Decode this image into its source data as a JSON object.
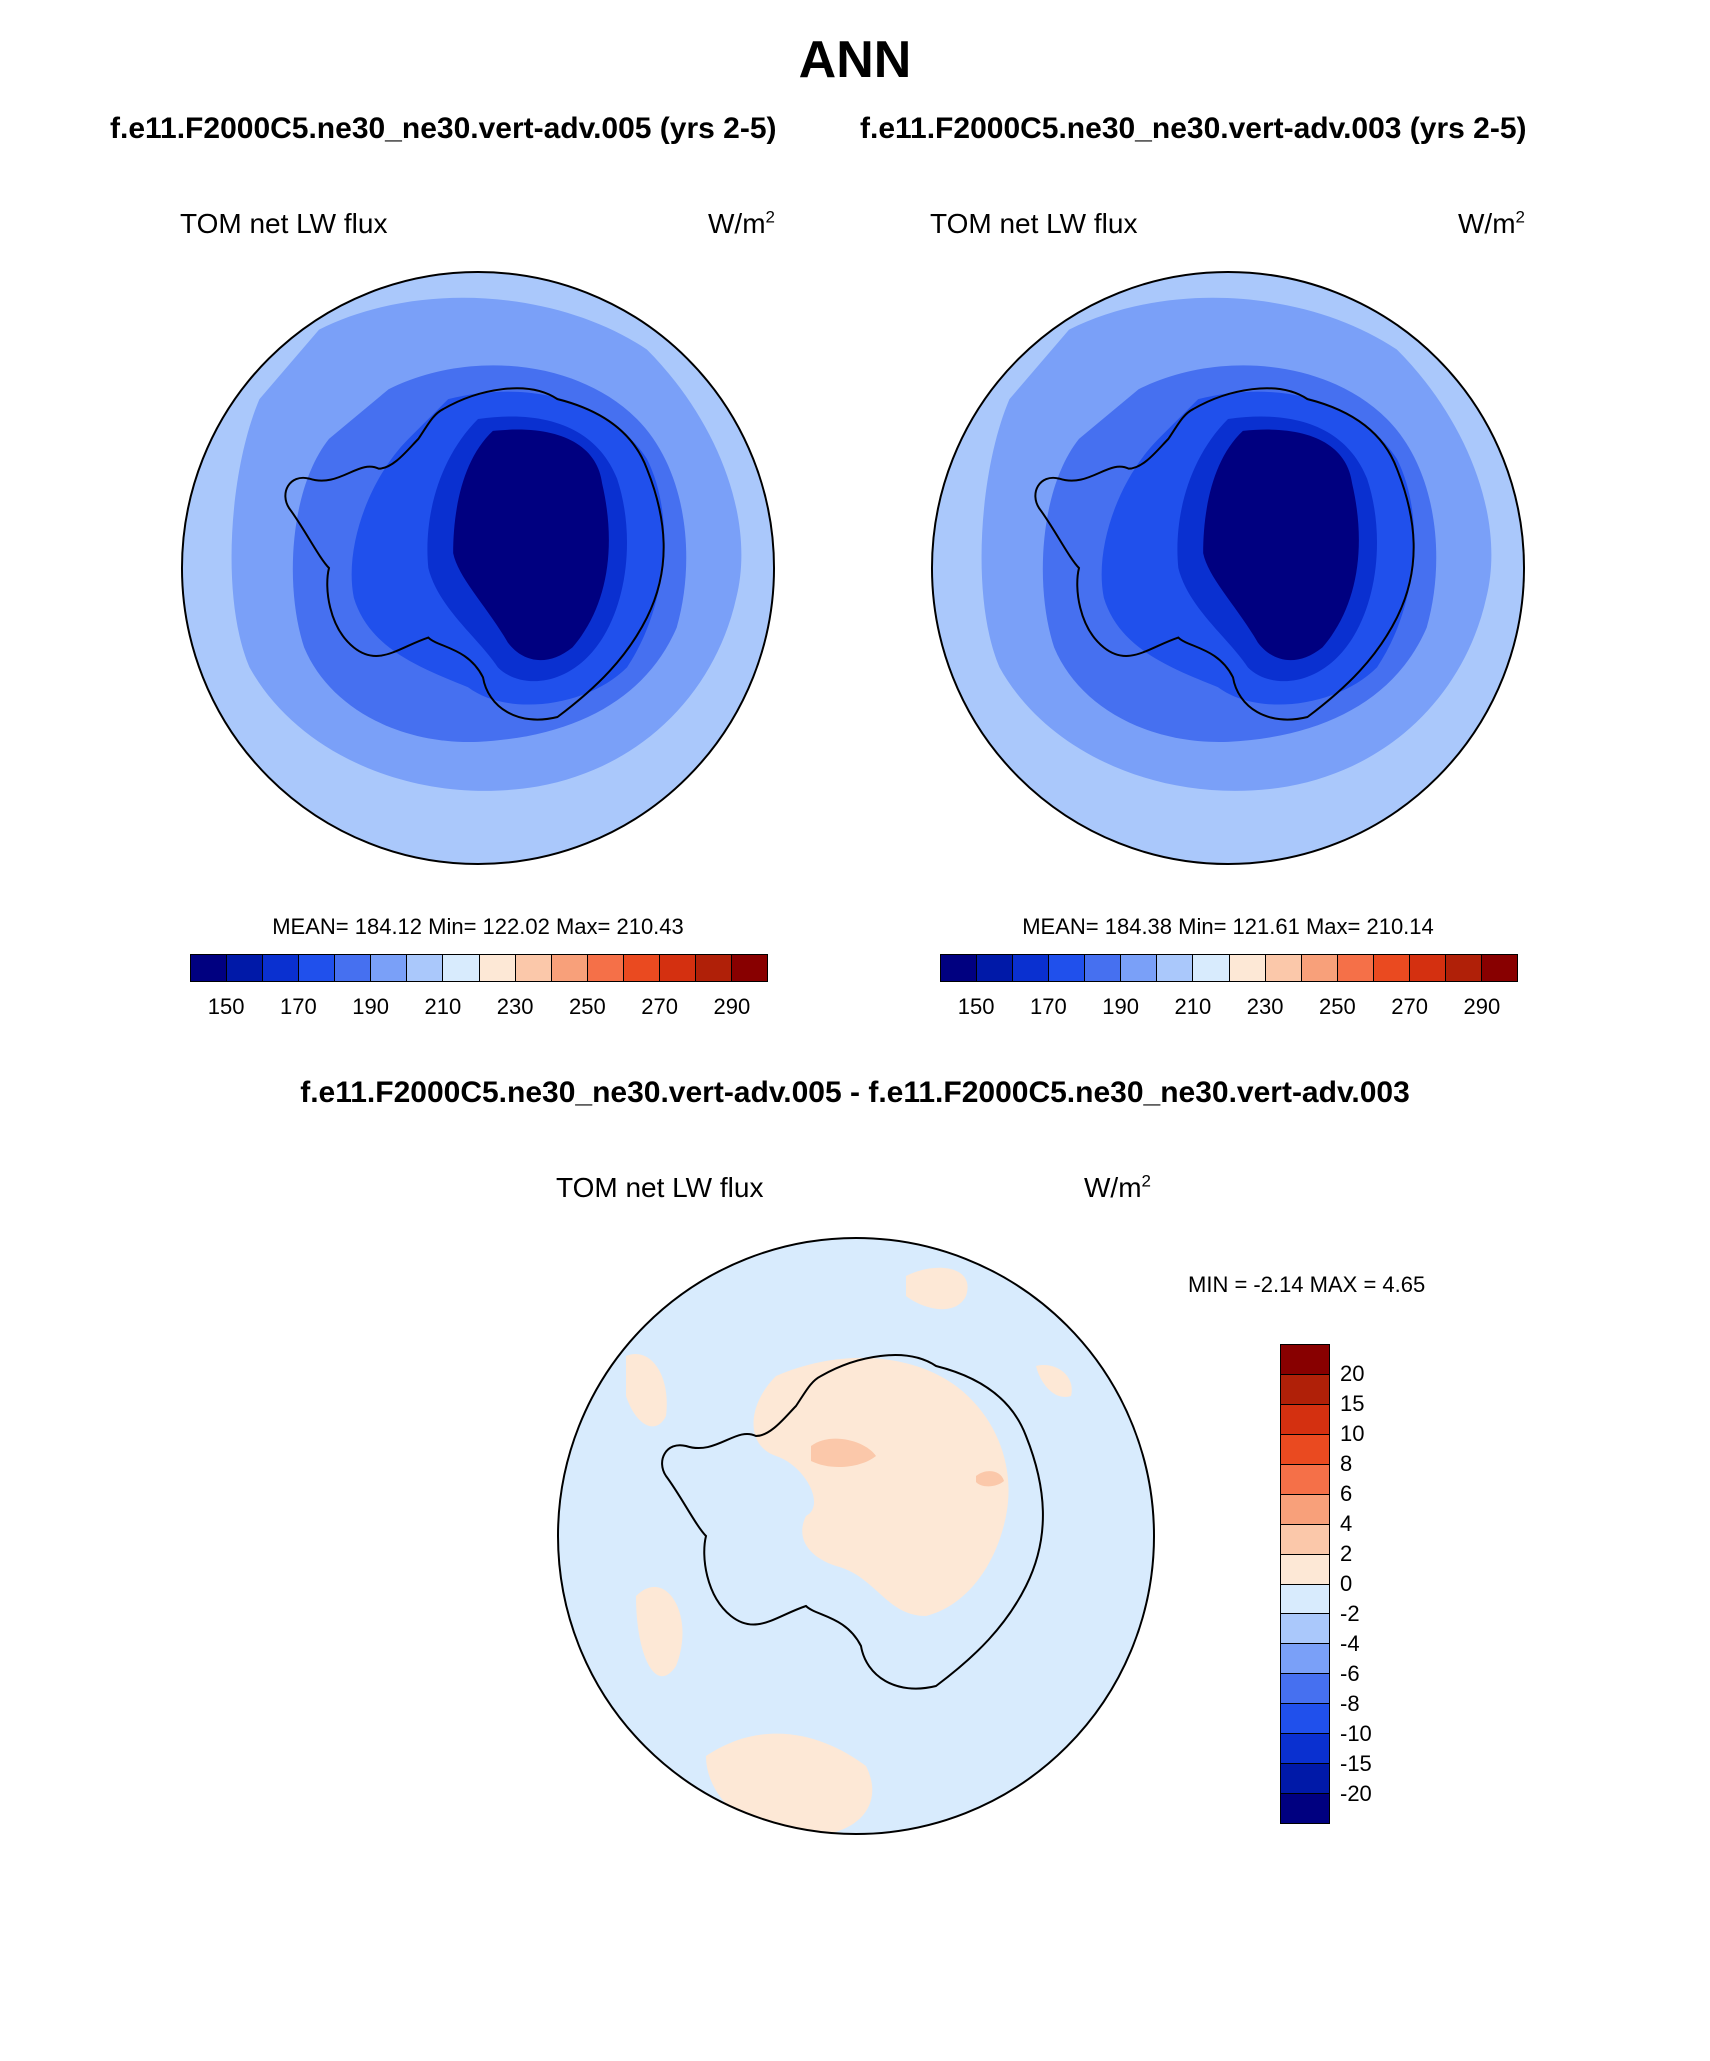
{
  "title": "ANN",
  "case_titles": [
    "f.e11.F2000C5.ne30_ne30.vert-adv.005 (yrs 2-5)",
    "f.e11.F2000C5.ne30_ne30.vert-adv.003 (yrs 2-5)"
  ],
  "diff_title": "f.e11.F2000C5.ne30_ne30.vert-adv.005 - f.e11.F2000C5.ne30_ne30.vert-adv.003",
  "panels": [
    {
      "variable": "TOM net LW flux",
      "units_base": "W/m",
      "units_sup": "2",
      "stats": "MEAN= 184.12  Min= 122.02  Max= 210.43"
    },
    {
      "variable": "TOM net LW flux",
      "units_base": "W/m",
      "units_sup": "2",
      "stats": "MEAN= 184.38  Min= 121.61  Max= 210.14"
    },
    {
      "variable": "TOM net LW flux",
      "units_base": "W/m",
      "units_sup": "2",
      "stats": "MIN =  -2.14 MAX =   4.65"
    }
  ],
  "colorbar_main": {
    "colors": [
      "#000080",
      "#0019a8",
      "#0a30d0",
      "#2050ec",
      "#4670f0",
      "#7aa0f8",
      "#aac8fb",
      "#d8ebfd",
      "#fde8d6",
      "#fbc8aa",
      "#f8a07a",
      "#f57048",
      "#ea4a20",
      "#d43010",
      "#b02008",
      "#880000"
    ],
    "labels": [
      "150",
      "170",
      "190",
      "210",
      "230",
      "250",
      "270",
      "290"
    ]
  },
  "colorbar_diff": {
    "colors": [
      "#880000",
      "#b02008",
      "#d43010",
      "#ea4a20",
      "#f57048",
      "#f8a07a",
      "#fbc8aa",
      "#fde8d6",
      "#d8ebfd",
      "#aac8fb",
      "#7aa0f8",
      "#4670f0",
      "#2050ec",
      "#0a30d0",
      "#0019a8",
      "#000080"
    ],
    "labels": [
      "20",
      "15",
      "10",
      "8",
      "6",
      "4",
      "2",
      "0",
      "-2",
      "-4",
      "-6",
      "-8",
      "-10",
      "-15",
      "-20"
    ]
  }
}
